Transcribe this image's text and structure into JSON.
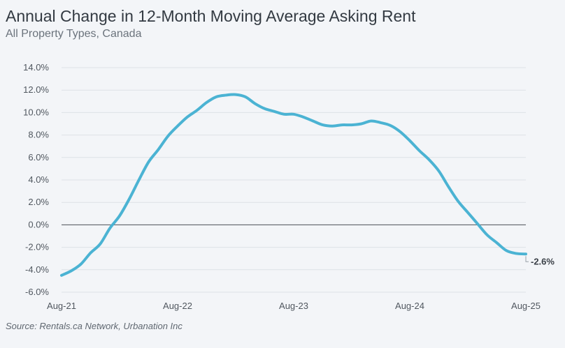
{
  "chart_data": {
    "type": "line",
    "title": "Annual Change in 12-Month Moving Average Asking Rent",
    "subtitle": "All Property Types, Canada",
    "source": "Source: Rentals.ca Network, Urbanation Inc",
    "xlabel": "",
    "ylabel": "",
    "ylim": [
      -6,
      14
    ],
    "xlim": [
      "2021-08",
      "2025-08"
    ],
    "grid": true,
    "legend": "none",
    "y_ticks": [
      14,
      12,
      10,
      8,
      6,
      4,
      2,
      0,
      -2,
      -4,
      -6
    ],
    "y_tick_labels": [
      "14.0%",
      "12.0%",
      "10.0%",
      "8.0%",
      "6.0%",
      "4.0%",
      "2.0%",
      "0.0%",
      "-2.0%",
      "-4.0%",
      "-6.0%"
    ],
    "x_ticks": [
      "2021-08",
      "2022-08",
      "2023-08",
      "2024-08",
      "2025-08"
    ],
    "x_tick_labels": [
      "Aug-21",
      "Aug-22",
      "Aug-23",
      "Aug-24",
      "Aug-25"
    ],
    "end_label": "-2.6%",
    "line_color": "#4bb3d3",
    "series": [
      {
        "x": [
          "2021-08",
          "2021-09",
          "2021-10",
          "2021-11",
          "2021-12",
          "2022-01",
          "2022-02",
          "2022-03",
          "2022-04",
          "2022-05",
          "2022-06",
          "2022-07",
          "2022-08",
          "2022-09",
          "2022-10",
          "2022-11",
          "2022-12",
          "2023-01",
          "2023-02",
          "2023-03",
          "2023-04",
          "2023-05",
          "2023-06",
          "2023-07",
          "2023-08",
          "2023-09",
          "2023-10",
          "2023-11",
          "2023-12",
          "2024-01",
          "2024-02",
          "2024-03",
          "2024-04",
          "2024-05",
          "2024-06",
          "2024-07",
          "2024-08",
          "2024-09",
          "2024-10",
          "2024-11",
          "2024-12",
          "2025-01",
          "2025-02",
          "2025-03",
          "2025-04",
          "2025-05",
          "2025-06",
          "2025-07",
          "2025-08"
        ],
        "values": [
          -4.5,
          -4.1,
          -3.5,
          -2.5,
          -1.7,
          -0.3,
          0.8,
          2.3,
          4.0,
          5.6,
          6.7,
          7.9,
          8.8,
          9.6,
          10.2,
          10.9,
          11.4,
          11.55,
          11.6,
          11.4,
          10.8,
          10.35,
          10.1,
          9.85,
          9.85,
          9.6,
          9.25,
          8.9,
          8.8,
          8.9,
          8.9,
          9.0,
          9.25,
          9.1,
          8.85,
          8.3,
          7.5,
          6.6,
          5.8,
          4.8,
          3.4,
          2.1,
          1.1,
          0.1,
          -0.9,
          -1.6,
          -2.3,
          -2.55,
          -2.6
        ]
      }
    ]
  }
}
